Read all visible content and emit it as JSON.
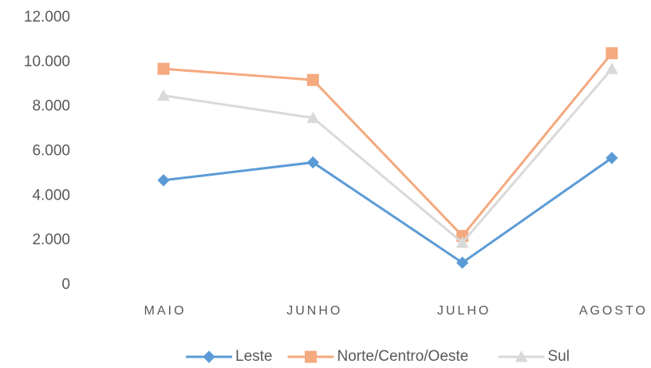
{
  "chart_data": {
    "type": "line",
    "categories": [
      "MAIO",
      "JUNHO",
      "JULHO",
      "AGOSTO"
    ],
    "series": [
      {
        "name": "Leste",
        "color": "#5b9bd5",
        "marker": "diamond",
        "values": [
          4700,
          5500,
          1000,
          5700
        ]
      },
      {
        "name": "Norte/Centro/Oeste",
        "color": "#f4a97f",
        "marker": "square",
        "values": [
          9700,
          9200,
          2200,
          10400
        ]
      },
      {
        "name": "Sul",
        "color": "#d9d9d9",
        "marker": "triangle",
        "values": [
          8500,
          7500,
          1900,
          9700
        ]
      }
    ],
    "ylim": [
      0,
      12000
    ],
    "yticks": [
      0,
      {
        "value": 2000,
        "label": "2.000"
      },
      {
        "value": 4000,
        "label": "4.000"
      },
      {
        "value": 6000,
        "label": "6.000"
      },
      {
        "value": 8000,
        "label": "8.000"
      },
      {
        "value": 10000,
        "label": "10.000"
      },
      {
        "value": 12000,
        "label": "12.000"
      }
    ],
    "grid": false,
    "legend": "bottom"
  }
}
